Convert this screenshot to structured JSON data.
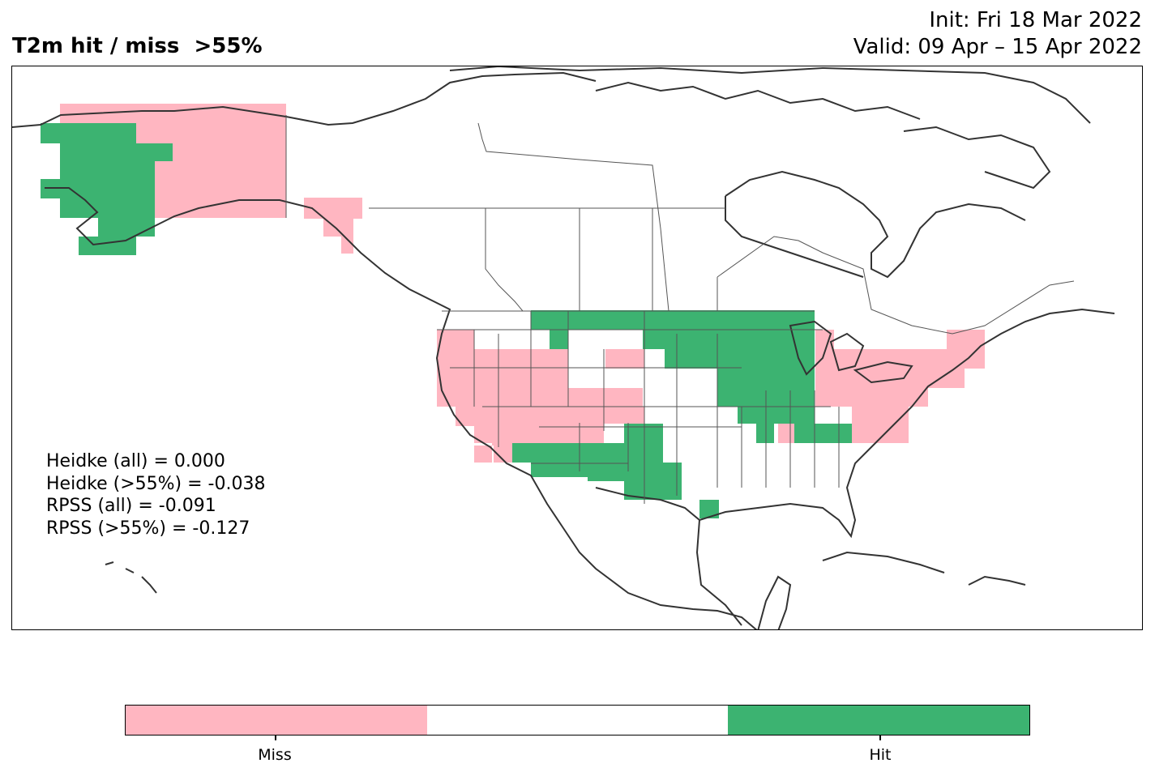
{
  "title": "T2m hit / miss  >55%",
  "init_text": "Init: Fri 18 Mar 2022",
  "valid_text": "Valid: 09 Apr – 15 Apr 2022",
  "scores": [
    "Heidke (all) = 0.000",
    "Heidke (>55%) = -0.038",
    "RPSS (all) = -0.091",
    "RPSS (>55%) = -0.127"
  ],
  "legend": {
    "categories": [
      "Miss",
      "",
      "Hit"
    ],
    "colors": {
      "miss": "#ffb6c1",
      "neutral": "#ffffff",
      "hit": "#3cb371"
    },
    "tick_labels": [
      "Miss",
      "Hit"
    ]
  },
  "colors": {
    "miss": "#ffb6c1",
    "hit": "#3cb371",
    "coast": "#333333",
    "border": "#555555"
  }
}
